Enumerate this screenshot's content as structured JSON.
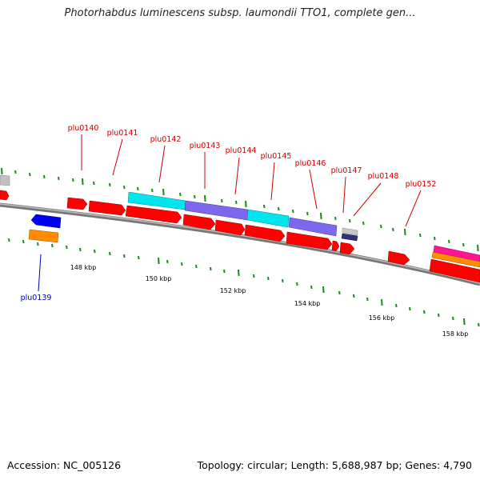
{
  "title": "Photorhabdus luminescens subsp. laumondii TTO1, complete gen...",
  "footer": {
    "accession": "Accession: NC_005126",
    "summary": "Topology: circular; Length: 5,688,987 bp; Genes: 4,790"
  },
  "colors": {
    "backbone": "#8a8a8a",
    "tick": "#1a8a1a",
    "gene_label_red": "#cc0000",
    "gene_label_blue": "#0000aa",
    "red": "#ff0000",
    "cyan": "#00e5ee",
    "purple": "#7b68ee",
    "blue": "#0000ee",
    "orange": "#ff8c00",
    "gray": "#c0c0c0",
    "magenta": "#ff1493"
  },
  "scale_labels": [
    "148 kbp",
    "150 kbp",
    "152 kbp",
    "154 kbp",
    "156 kbp",
    "158 kbp"
  ],
  "gene_labels": [
    {
      "name": "plu0139",
      "color": "blue"
    },
    {
      "name": "plu0140",
      "color": "red"
    },
    {
      "name": "plu0141",
      "color": "red"
    },
    {
      "name": "plu0142",
      "color": "red"
    },
    {
      "name": "plu0143",
      "color": "red"
    },
    {
      "name": "plu0144",
      "color": "red"
    },
    {
      "name": "plu0145",
      "color": "red"
    },
    {
      "name": "plu0146",
      "color": "red"
    },
    {
      "name": "plu0147",
      "color": "red"
    },
    {
      "name": "plu0148",
      "color": "red"
    },
    {
      "name": "plu0152",
      "color": "red"
    }
  ]
}
